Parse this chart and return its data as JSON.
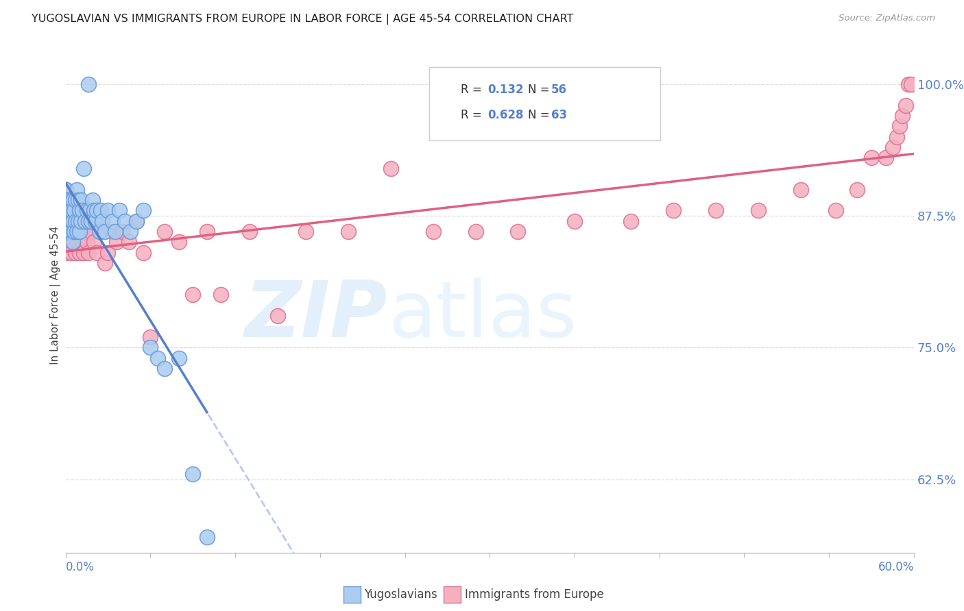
{
  "title": "YUGOSLAVIAN VS IMMIGRANTS FROM EUROPE IN LABOR FORCE | AGE 45-54 CORRELATION CHART",
  "source": "Source: ZipAtlas.com",
  "ylabel": "In Labor Force | Age 45-54",
  "xmin": 0.0,
  "xmax": 0.6,
  "ymin": 0.555,
  "ymax": 1.045,
  "ytick_positions": [
    0.625,
    0.75,
    0.875,
    1.0
  ],
  "ytick_labels": [
    "62.5%",
    "75.0%",
    "87.5%",
    "100.0%"
  ],
  "color_yugoslav_fill": "#AACCF0",
  "color_yugoslav_edge": "#6699DD",
  "color_europe_fill": "#F5B0C0",
  "color_europe_edge": "#E07090",
  "color_line_blue_solid": "#5580CC",
  "color_line_pink_solid": "#E06080",
  "color_line_blue_dash": "#99BBEE",
  "tick_color": "#5580CC",
  "legend_label1": "Yugoslavians",
  "legend_label2": "Immigrants from Europe",
  "yugoslav_x": [
    0.0,
    0.0,
    0.0,
    0.001,
    0.001,
    0.002,
    0.002,
    0.003,
    0.003,
    0.004,
    0.004,
    0.005,
    0.005,
    0.005,
    0.006,
    0.006,
    0.007,
    0.007,
    0.008,
    0.008,
    0.009,
    0.009,
    0.01,
    0.01,
    0.011,
    0.011,
    0.012,
    0.013,
    0.014,
    0.015,
    0.016,
    0.016,
    0.017,
    0.018,
    0.019,
    0.02,
    0.021,
    0.022,
    0.024,
    0.025,
    0.026,
    0.028,
    0.03,
    0.033,
    0.035,
    0.038,
    0.042,
    0.046,
    0.05,
    0.055,
    0.06,
    0.065,
    0.07,
    0.08,
    0.09,
    0.1
  ],
  "yugoslav_y": [
    0.86,
    0.88,
    0.9,
    0.87,
    0.89,
    0.86,
    0.88,
    0.87,
    0.89,
    0.86,
    0.88,
    0.85,
    0.87,
    0.89,
    0.86,
    0.88,
    0.87,
    0.89,
    0.86,
    0.9,
    0.87,
    0.89,
    0.86,
    0.88,
    0.87,
    0.89,
    0.88,
    0.92,
    0.87,
    0.88,
    0.87,
    1.0,
    0.88,
    0.87,
    0.89,
    0.88,
    0.87,
    0.88,
    0.86,
    0.88,
    0.87,
    0.86,
    0.88,
    0.87,
    0.86,
    0.88,
    0.87,
    0.86,
    0.87,
    0.88,
    0.75,
    0.74,
    0.73,
    0.74,
    0.63,
    0.57
  ],
  "europe_x": [
    0.0,
    0.0,
    0.0,
    0.0,
    0.001,
    0.002,
    0.003,
    0.004,
    0.005,
    0.006,
    0.007,
    0.008,
    0.009,
    0.01,
    0.011,
    0.012,
    0.013,
    0.014,
    0.015,
    0.016,
    0.018,
    0.02,
    0.022,
    0.025,
    0.028,
    0.03,
    0.033,
    0.036,
    0.04,
    0.045,
    0.05,
    0.055,
    0.06,
    0.07,
    0.08,
    0.09,
    0.1,
    0.11,
    0.13,
    0.15,
    0.17,
    0.2,
    0.23,
    0.26,
    0.29,
    0.32,
    0.36,
    0.4,
    0.43,
    0.46,
    0.49,
    0.52,
    0.545,
    0.56,
    0.57,
    0.58,
    0.585,
    0.588,
    0.59,
    0.592,
    0.594,
    0.596,
    0.598
  ],
  "europe_y": [
    0.84,
    0.86,
    0.88,
    0.9,
    0.87,
    0.86,
    0.85,
    0.84,
    0.86,
    0.85,
    0.84,
    0.86,
    0.85,
    0.84,
    0.86,
    0.85,
    0.84,
    0.86,
    0.85,
    0.84,
    0.86,
    0.85,
    0.84,
    0.86,
    0.83,
    0.84,
    0.86,
    0.85,
    0.86,
    0.85,
    0.87,
    0.84,
    0.76,
    0.86,
    0.85,
    0.8,
    0.86,
    0.8,
    0.86,
    0.78,
    0.86,
    0.86,
    0.92,
    0.86,
    0.86,
    0.86,
    0.87,
    0.87,
    0.88,
    0.88,
    0.88,
    0.9,
    0.88,
    0.9,
    0.93,
    0.93,
    0.94,
    0.95,
    0.96,
    0.97,
    0.98,
    1.0,
    1.0
  ]
}
